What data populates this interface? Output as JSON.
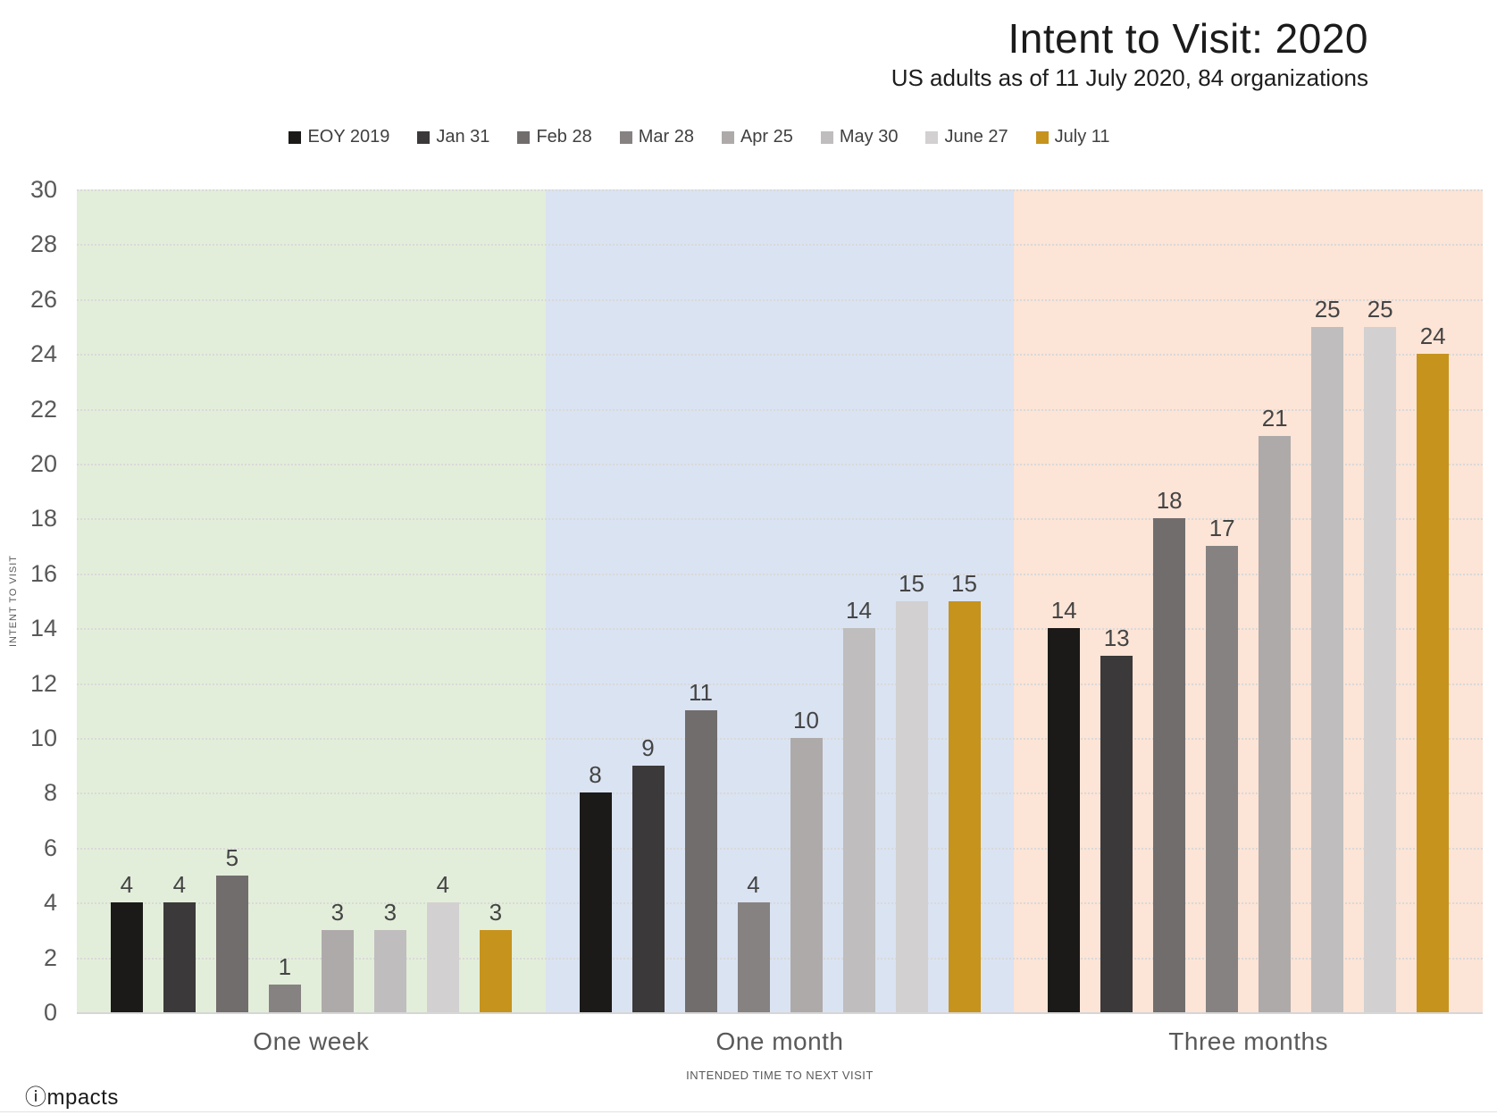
{
  "title": "Intent to Visit: 2020",
  "subtitle": "US adults as of 11 July 2020, 84 organizations",
  "logo": "ⓘmpacts",
  "chart_data": {
    "type": "bar",
    "title": "Intent to Visit: 2020",
    "subtitle": "US adults as of 11 July 2020, 84 organizations",
    "categories": [
      "One week",
      "One month",
      "Three months"
    ],
    "series": [
      {
        "name": "EOY 2019",
        "color": "#1b1a19",
        "values": [
          4,
          8,
          14
        ]
      },
      {
        "name": "Jan 31",
        "color": "#3b3939",
        "values": [
          4,
          9,
          13
        ]
      },
      {
        "name": "Feb 28",
        "color": "#716d6d",
        "values": [
          5,
          11,
          18
        ]
      },
      {
        "name": "Mar 28",
        "color": "#868282",
        "values": [
          1,
          4,
          17
        ]
      },
      {
        "name": "Apr 25",
        "color": "#aeaaaa",
        "values": [
          3,
          10,
          21
        ]
      },
      {
        "name": "May 30",
        "color": "#bfbdbd",
        "values": [
          3,
          14,
          25
        ]
      },
      {
        "name": "June 27",
        "color": "#d2d0d0",
        "values": [
          4,
          15,
          25
        ]
      },
      {
        "name": "July 11",
        "color": "#c6931d",
        "values": [
          3,
          15,
          24
        ]
      }
    ],
    "ylabel": "INTENT TO VISIT",
    "xlabel": "INTENDED TIME TO NEXT VISIT",
    "ylim": [
      0,
      30
    ],
    "ytick_step": 2,
    "grid": "dotted-horizontal",
    "legend_position": "top",
    "band_colors": [
      "#e3eeda",
      "#dae3f2",
      "#fce4d6"
    ]
  }
}
